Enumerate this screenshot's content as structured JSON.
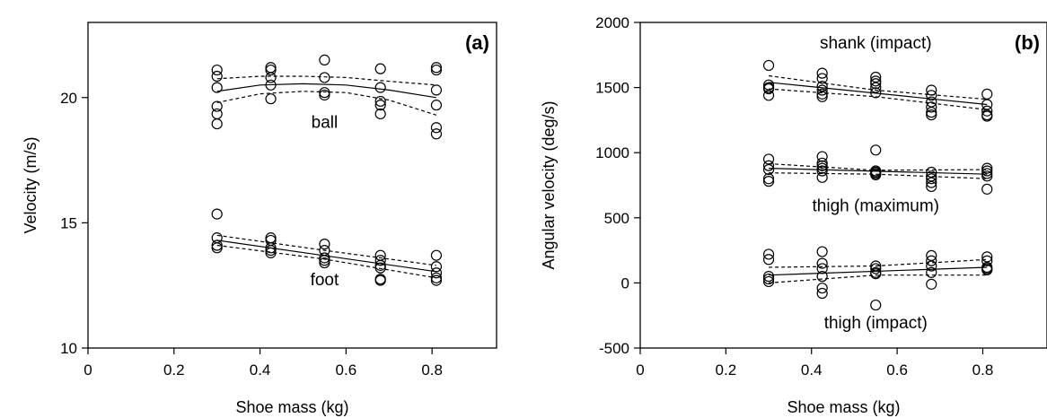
{
  "chart_data": [
    {
      "type": "scatter",
      "panel_label": "(a)",
      "xlabel": "Shoe mass (kg)",
      "ylabel": "Velocity (m/s)",
      "xlim": [
        0,
        0.95
      ],
      "ylim": [
        10,
        23
      ],
      "xticks": [
        "0",
        "0.2",
        "0.4",
        "0.6",
        "0.8"
      ],
      "yticks": [
        "10",
        "15",
        "20"
      ],
      "grid": false,
      "annotations": [
        {
          "text": "ball",
          "x": 0.55,
          "y": 18.8
        },
        {
          "text": "foot",
          "x": 0.55,
          "y": 12.5
        }
      ],
      "series": [
        {
          "label_ref": "ball",
          "points": [
            [
              0.3,
              21.1
            ],
            [
              0.3,
              20.85
            ],
            [
              0.3,
              20.4
            ],
            [
              0.3,
              19.65
            ],
            [
              0.3,
              19.35
            ],
            [
              0.3,
              18.95
            ],
            [
              0.425,
              21.2
            ],
            [
              0.425,
              21.1
            ],
            [
              0.425,
              20.8
            ],
            [
              0.425,
              20.5
            ],
            [
              0.425,
              19.95
            ],
            [
              0.55,
              21.5
            ],
            [
              0.55,
              20.8
            ],
            [
              0.55,
              20.2
            ],
            [
              0.55,
              20.1
            ],
            [
              0.68,
              21.15
            ],
            [
              0.68,
              20.4
            ],
            [
              0.68,
              19.85
            ],
            [
              0.68,
              19.7
            ],
            [
              0.68,
              19.35
            ],
            [
              0.81,
              21.2
            ],
            [
              0.81,
              21.1
            ],
            [
              0.81,
              20.3
            ],
            [
              0.81,
              19.7
            ],
            [
              0.81,
              18.8
            ],
            [
              0.81,
              18.55
            ]
          ],
          "fit": [
            [
              0.3,
              20.25
            ],
            [
              0.4,
              20.5
            ],
            [
              0.5,
              20.55
            ],
            [
              0.6,
              20.5
            ],
            [
              0.7,
              20.3
            ],
            [
              0.81,
              20.0
            ]
          ],
          "ci_upper": [
            [
              0.3,
              20.75
            ],
            [
              0.4,
              20.85
            ],
            [
              0.5,
              20.85
            ],
            [
              0.6,
              20.8
            ],
            [
              0.7,
              20.65
            ],
            [
              0.81,
              20.5
            ]
          ],
          "ci_lower": [
            [
              0.3,
              19.8
            ],
            [
              0.4,
              20.15
            ],
            [
              0.5,
              20.25
            ],
            [
              0.6,
              20.2
            ],
            [
              0.7,
              19.9
            ],
            [
              0.81,
              19.3
            ]
          ]
        },
        {
          "label_ref": "foot",
          "points": [
            [
              0.3,
              15.35
            ],
            [
              0.3,
              14.4
            ],
            [
              0.3,
              14.1
            ],
            [
              0.3,
              14.0
            ],
            [
              0.425,
              14.4
            ],
            [
              0.425,
              14.3
            ],
            [
              0.425,
              14.0
            ],
            [
              0.425,
              13.9
            ],
            [
              0.425,
              13.8
            ],
            [
              0.55,
              14.15
            ],
            [
              0.55,
              13.9
            ],
            [
              0.55,
              13.6
            ],
            [
              0.55,
              13.5
            ],
            [
              0.55,
              13.4
            ],
            [
              0.68,
              13.7
            ],
            [
              0.68,
              13.5
            ],
            [
              0.68,
              13.3
            ],
            [
              0.68,
              13.2
            ],
            [
              0.68,
              12.75
            ],
            [
              0.68,
              12.7
            ],
            [
              0.81,
              13.7
            ],
            [
              0.81,
              13.25
            ],
            [
              0.81,
              13.0
            ],
            [
              0.81,
              12.8
            ],
            [
              0.81,
              12.7
            ]
          ],
          "fit": [
            [
              0.3,
              14.3
            ],
            [
              0.81,
              13.05
            ]
          ],
          "ci_upper": [
            [
              0.3,
              14.5
            ],
            [
              0.55,
              13.9
            ],
            [
              0.81,
              13.3
            ]
          ],
          "ci_lower": [
            [
              0.3,
              14.1
            ],
            [
              0.55,
              13.55
            ],
            [
              0.81,
              12.8
            ]
          ]
        }
      ]
    },
    {
      "type": "scatter",
      "panel_label": "(b)",
      "xlabel": "Shoe mass (kg)",
      "ylabel": "Angular velocity (deg/s)",
      "xlim": [
        0,
        0.95
      ],
      "ylim": [
        -500,
        2000
      ],
      "xticks": [
        "0",
        "0.2",
        "0.4",
        "0.6",
        "0.8"
      ],
      "yticks": [
        "-500",
        "0",
        "500",
        "1000",
        "1500",
        "2000"
      ],
      "grid": false,
      "annotations": [
        {
          "text": "shank (impact)",
          "x": 0.55,
          "y": 1800
        },
        {
          "text": "thigh (maximum)",
          "x": 0.55,
          "y": 550
        },
        {
          "text": "thigh (impact)",
          "x": 0.55,
          "y": -350
        }
      ],
      "series": [
        {
          "label_ref": "shank (impact)",
          "points": [
            [
              0.3,
              1670
            ],
            [
              0.3,
              1520
            ],
            [
              0.3,
              1500
            ],
            [
              0.3,
              1490
            ],
            [
              0.3,
              1440
            ],
            [
              0.425,
              1610
            ],
            [
              0.425,
              1570
            ],
            [
              0.425,
              1510
            ],
            [
              0.425,
              1480
            ],
            [
              0.425,
              1450
            ],
            [
              0.425,
              1430
            ],
            [
              0.55,
              1580
            ],
            [
              0.55,
              1550
            ],
            [
              0.55,
              1530
            ],
            [
              0.55,
              1500
            ],
            [
              0.55,
              1460
            ],
            [
              0.68,
              1480
            ],
            [
              0.68,
              1440
            ],
            [
              0.68,
              1390
            ],
            [
              0.68,
              1350
            ],
            [
              0.68,
              1310
            ],
            [
              0.68,
              1290
            ],
            [
              0.81,
              1450
            ],
            [
              0.81,
              1370
            ],
            [
              0.81,
              1320
            ],
            [
              0.81,
              1290
            ],
            [
              0.81,
              1280
            ]
          ],
          "fit": [
            [
              0.3,
              1540
            ],
            [
              0.81,
              1370
            ]
          ],
          "ci_upper": [
            [
              0.3,
              1590
            ],
            [
              0.55,
              1480
            ],
            [
              0.81,
              1410
            ]
          ],
          "ci_lower": [
            [
              0.3,
              1490
            ],
            [
              0.55,
              1430
            ],
            [
              0.81,
              1330
            ]
          ]
        },
        {
          "label_ref": "thigh (maximum)",
          "points": [
            [
              0.3,
              950
            ],
            [
              0.3,
              900
            ],
            [
              0.3,
              870
            ],
            [
              0.3,
              800
            ],
            [
              0.3,
              780
            ],
            [
              0.425,
              970
            ],
            [
              0.425,
              920
            ],
            [
              0.425,
              900
            ],
            [
              0.425,
              880
            ],
            [
              0.425,
              860
            ],
            [
              0.425,
              810
            ],
            [
              0.55,
              1020
            ],
            [
              0.55,
              860
            ],
            [
              0.55,
              850
            ],
            [
              0.55,
              840
            ],
            [
              0.55,
              830
            ],
            [
              0.68,
              850
            ],
            [
              0.68,
              820
            ],
            [
              0.68,
              800
            ],
            [
              0.68,
              770
            ],
            [
              0.68,
              740
            ],
            [
              0.81,
              880
            ],
            [
              0.81,
              860
            ],
            [
              0.81,
              840
            ],
            [
              0.81,
              820
            ],
            [
              0.81,
              720
            ]
          ],
          "fit": [
            [
              0.3,
              880
            ],
            [
              0.81,
              835
            ]
          ],
          "ci_upper": [
            [
              0.3,
              915
            ],
            [
              0.55,
              865
            ],
            [
              0.81,
              870
            ]
          ],
          "ci_lower": [
            [
              0.3,
              845
            ],
            [
              0.55,
              835
            ],
            [
              0.81,
              800
            ]
          ]
        },
        {
          "label_ref": "thigh (impact)",
          "points": [
            [
              0.3,
              220
            ],
            [
              0.3,
              180
            ],
            [
              0.3,
              50
            ],
            [
              0.3,
              30
            ],
            [
              0.3,
              10
            ],
            [
              0.425,
              240
            ],
            [
              0.425,
              150
            ],
            [
              0.425,
              110
            ],
            [
              0.425,
              50
            ],
            [
              0.425,
              -40
            ],
            [
              0.425,
              -80
            ],
            [
              0.55,
              130
            ],
            [
              0.55,
              110
            ],
            [
              0.55,
              80
            ],
            [
              0.55,
              70
            ],
            [
              0.55,
              -170
            ],
            [
              0.68,
              210
            ],
            [
              0.68,
              170
            ],
            [
              0.68,
              130
            ],
            [
              0.68,
              80
            ],
            [
              0.68,
              -10
            ],
            [
              0.81,
              200
            ],
            [
              0.81,
              170
            ],
            [
              0.81,
              120
            ],
            [
              0.81,
              110
            ],
            [
              0.81,
              100
            ]
          ],
          "fit": [
            [
              0.3,
              60
            ],
            [
              0.81,
              120
            ]
          ],
          "ci_upper": [
            [
              0.3,
              120
            ],
            [
              0.55,
              130
            ],
            [
              0.81,
              180
            ]
          ],
          "ci_lower": [
            [
              0.3,
              0
            ],
            [
              0.55,
              60
            ],
            [
              0.81,
              60
            ]
          ]
        }
      ]
    }
  ]
}
